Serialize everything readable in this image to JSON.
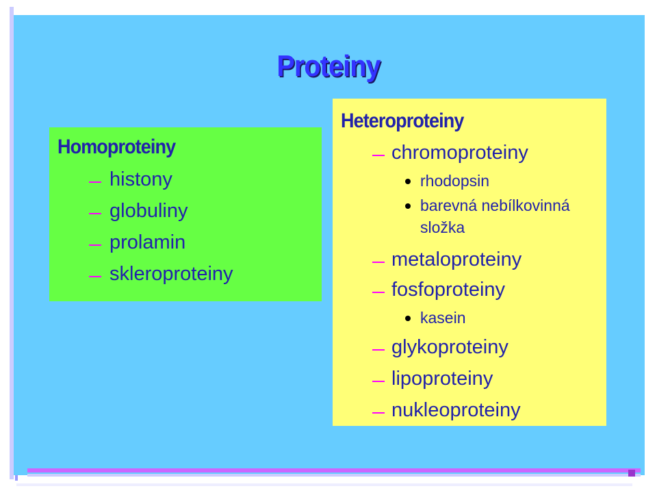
{
  "slide": {
    "title": "Proteiny",
    "left_panel": {
      "heading": "Homoproteiny",
      "items": [
        "histony",
        "globuliny",
        "prolamin",
        "skleroproteiny"
      ]
    },
    "right_panel": {
      "heading": "Heteroproteiny",
      "items": [
        {
          "label": "chromoproteiny",
          "subitems": [
            "rhodopsin",
            "barevná nebílkovinná",
            "složka"
          ]
        },
        {
          "label": "metaloproteiny"
        },
        {
          "label": "fosfoproteiny",
          "subitems": [
            "kasein"
          ]
        },
        {
          "label": "glykoproteiny"
        },
        {
          "label": "lipoproteiny"
        },
        {
          "label": "nukleoproteiny"
        }
      ]
    },
    "colors": {
      "background": "#66ccff",
      "left_panel": "#66ff44",
      "right_panel": "#ffff77",
      "text": "#2222aa",
      "dash": "#ff00ff",
      "frame_accent": "#9933cc"
    }
  }
}
